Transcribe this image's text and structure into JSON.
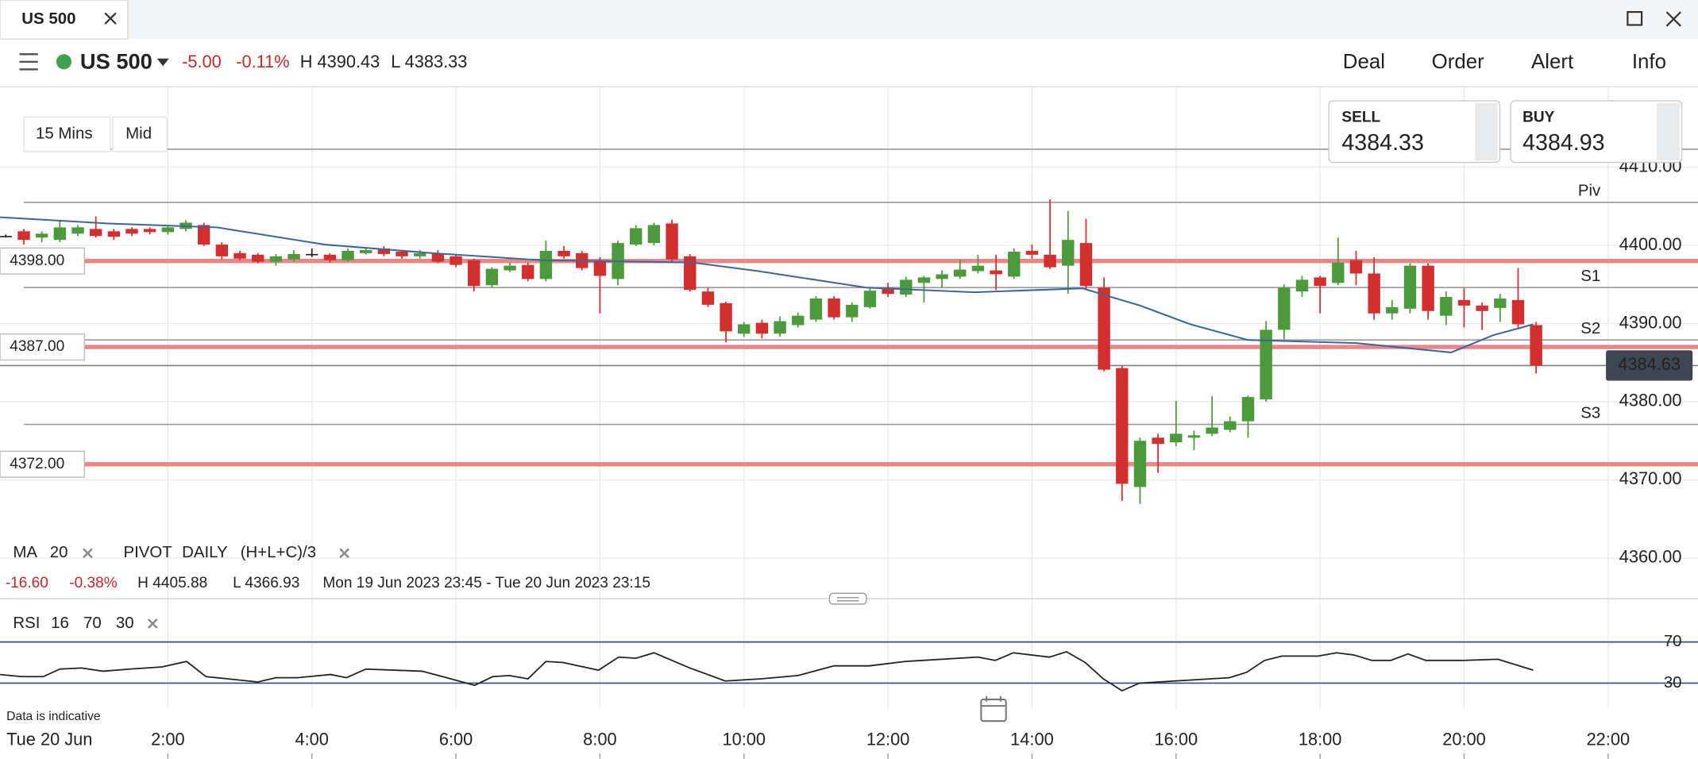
{
  "tab": {
    "title": "US 500"
  },
  "toolbar": {
    "instrument": "US 500",
    "change": "-5.00",
    "change_pct": "-0.11%",
    "high": "H 4390.43",
    "low": "L 4383.33",
    "actions": [
      "Deal",
      "Order",
      "Alert",
      "Info"
    ]
  },
  "settings": {
    "timeframe": "15 Mins",
    "price_type": "Mid"
  },
  "quotes": {
    "sell": {
      "label": "SELL",
      "price": "4384.33"
    },
    "buy": {
      "label": "BUY",
      "price": "4384.93"
    }
  },
  "legend": {
    "ma": {
      "name": "MA",
      "period": "20"
    },
    "pivot": {
      "name": "PIVOT",
      "period": "DAILY",
      "formula": "(H+L+C)/3"
    }
  },
  "summary": {
    "change": "-16.60",
    "change_pct": "-0.38%",
    "high": "H 4405.88",
    "low": "L 4366.93",
    "range": "Mon 19 Jun 2023 23:45 - Tue 20 Jun 2023 23:15"
  },
  "rsi_legend": {
    "name": "RSI",
    "period": "16",
    "upper": "70",
    "lower": "30"
  },
  "note": "Data is indicative",
  "chart_data": [
    {
      "type": "candlestick",
      "up_color": "#4c9a3c",
      "down_color": "#d32f2f",
      "flat_color": "#222222",
      "xlim": [
        -0.331,
        23.248
      ],
      "date_label": "Tue 20 Jun",
      "xticks": [
        {
          "value": 2,
          "label": "2:00"
        },
        {
          "value": 4,
          "label": "4:00"
        },
        {
          "value": 6,
          "label": "6:00"
        },
        {
          "value": 8,
          "label": "8:00"
        },
        {
          "value": 10,
          "label": "10:00"
        },
        {
          "value": 12,
          "label": "12:00"
        },
        {
          "value": 14,
          "label": "14:00"
        },
        {
          "value": 16,
          "label": "16:00"
        },
        {
          "value": 18,
          "label": "18:00"
        },
        {
          "value": 20,
          "label": "20:00"
        },
        {
          "value": 22,
          "label": "22:00"
        }
      ],
      "ylim": [
        4354.8,
        4420.3
      ],
      "yticks": [
        {
          "value": 4360,
          "label": "4360.00"
        },
        {
          "value": 4370,
          "label": "4370.00"
        },
        {
          "value": 4380,
          "label": "4380.00"
        },
        {
          "value": 4390,
          "label": "4390.00"
        },
        {
          "value": 4400,
          "label": "4400.00"
        },
        {
          "value": 4410,
          "label": "4410.00"
        }
      ],
      "grid": true,
      "candles": [
        [
          -0.25,
          4401.2,
          4401.4,
          4401.0,
          4401.2
        ],
        [
          0,
          4401.8,
          4402.1,
          4400.1,
          4400.7
        ],
        [
          0.25,
          4401.0,
          4401.8,
          4400.4,
          4401.5
        ],
        [
          0.5,
          4400.7,
          4403.2,
          4400.4,
          4402.3
        ],
        [
          0.75,
          4401.5,
          4402.6,
          4401.2,
          4402.3
        ],
        [
          1,
          4402.1,
          4403.7,
          4401.0,
          4401.2
        ],
        [
          1.25,
          4401.8,
          4402.1,
          4400.7,
          4401.1
        ],
        [
          1.5,
          4402.1,
          4402.3,
          4401.2,
          4401.5
        ],
        [
          1.75,
          4402.1,
          4402.3,
          4401.4,
          4401.7
        ],
        [
          2,
          4401.7,
          4402.6,
          4401.4,
          4402.3
        ],
        [
          2.25,
          4402.1,
          4403.2,
          4401.8,
          4402.9
        ],
        [
          2.5,
          4402.6,
          4402.9,
          4399.9,
          4400.1
        ],
        [
          2.75,
          4400.1,
          4400.4,
          4398.2,
          4398.6
        ],
        [
          3,
          4399.0,
          4399.3,
          4398.1,
          4398.3
        ],
        [
          3.25,
          4398.8,
          4399.0,
          4397.7,
          4397.9
        ],
        [
          3.5,
          4397.9,
          4398.9,
          4397.4,
          4398.6
        ],
        [
          3.75,
          4398.2,
          4399.4,
          4397.9,
          4398.9
        ],
        [
          4,
          4398.9,
          4399.6,
          4398.5,
          4398.9
        ],
        [
          4.25,
          4398.8,
          4399.0,
          4397.8,
          4398.1
        ],
        [
          4.5,
          4398.1,
          4399.6,
          4397.9,
          4399.3
        ],
        [
          4.75,
          4399.0,
          4399.7,
          4398.8,
          4399.4
        ],
        [
          5,
          4399.6,
          4399.9,
          4398.6,
          4398.9
        ],
        [
          5.25,
          4399.2,
          4399.4,
          4398.3,
          4398.6
        ],
        [
          5.5,
          4398.6,
          4399.4,
          4398.3,
          4399.0
        ],
        [
          5.75,
          4398.9,
          4399.4,
          4397.7,
          4397.9
        ],
        [
          6,
          4398.6,
          4398.9,
          4397.2,
          4397.5
        ],
        [
          6.25,
          4398.1,
          4398.3,
          4394.1,
          4394.8
        ],
        [
          6.5,
          4394.9,
          4397.2,
          4394.6,
          4397.0
        ],
        [
          6.75,
          4396.8,
          4397.8,
          4396.6,
          4397.4
        ],
        [
          7,
          4397.5,
          4397.8,
          4395.4,
          4395.7
        ],
        [
          7.25,
          4395.7,
          4400.6,
          4395.4,
          4399.3
        ],
        [
          7.5,
          4399.3,
          4399.9,
          4398.3,
          4398.6
        ],
        [
          7.75,
          4399.0,
          4399.3,
          4396.8,
          4397.1
        ],
        [
          8,
          4397.9,
          4398.5,
          4391.3,
          4396.1
        ],
        [
          8.25,
          4395.7,
          4400.6,
          4394.9,
          4400.3
        ],
        [
          8.5,
          4400.1,
          4402.6,
          4399.9,
          4402.2
        ],
        [
          8.75,
          4400.3,
          4402.9,
          4400.0,
          4402.6
        ],
        [
          9,
          4402.8,
          4403.3,
          4397.8,
          4398.2
        ],
        [
          9.25,
          4398.6,
          4398.9,
          4394.1,
          4394.3
        ],
        [
          9.5,
          4394.1,
          4394.6,
          4392.1,
          4392.4
        ],
        [
          9.75,
          4392.6,
          4392.8,
          4387.6,
          4389.0
        ],
        [
          10,
          4388.7,
          4390.2,
          4388.3,
          4389.9
        ],
        [
          10.25,
          4390.1,
          4390.5,
          4388.1,
          4388.7
        ],
        [
          10.5,
          4388.7,
          4390.9,
          4388.3,
          4390.3
        ],
        [
          10.75,
          4389.8,
          4391.4,
          4389.5,
          4391.0
        ],
        [
          11,
          4390.5,
          4393.5,
          4390.2,
          4393.2
        ],
        [
          11.25,
          4393.2,
          4393.5,
          4390.5,
          4390.8
        ],
        [
          11.5,
          4390.8,
          4392.7,
          4390.2,
          4392.4
        ],
        [
          11.75,
          4392.1,
          4394.6,
          4391.9,
          4394.2
        ],
        [
          12,
          4394.6,
          4395.2,
          4393.4,
          4393.8
        ],
        [
          12.25,
          4393.7,
          4396.0,
          4393.4,
          4395.6
        ],
        [
          12.5,
          4395.2,
          4396.1,
          4392.7,
          4395.9
        ],
        [
          12.75,
          4395.7,
          4396.8,
          4394.6,
          4396.3
        ],
        [
          13,
          4396.0,
          4398.2,
          4395.7,
          4396.9
        ],
        [
          13.25,
          4396.7,
          4398.8,
          4396.4,
          4397.4
        ],
        [
          13.5,
          4396.8,
          4398.8,
          4394.3,
          4396.3
        ],
        [
          13.75,
          4396.0,
          4399.6,
          4395.7,
          4399.2
        ],
        [
          14,
          4399.3,
          4400.1,
          4398.3,
          4398.8
        ],
        [
          14.25,
          4398.8,
          4405.88,
          4397.0,
          4397.2
        ],
        [
          14.5,
          4397.4,
          4404.4,
          4393.8,
          4400.7
        ],
        [
          14.75,
          4400.3,
          4403.4,
          4394.3,
          4394.8
        ],
        [
          15,
          4394.6,
          4395.9,
          4383.9,
          4384.1
        ],
        [
          15.25,
          4384.3,
          4384.6,
          4367.3,
          4369.5
        ],
        [
          15.5,
          4369.1,
          4375.4,
          4366.93,
          4375.0
        ],
        [
          15.75,
          4375.4,
          4375.9,
          4370.9,
          4374.6
        ],
        [
          16,
          4374.8,
          4380.1,
          4374.3,
          4375.9
        ],
        [
          16.25,
          4375.4,
          4376.3,
          4373.8,
          4375.7
        ],
        [
          16.5,
          4375.9,
          4380.7,
          4375.6,
          4376.7
        ],
        [
          16.75,
          4376.4,
          4378.1,
          4376.1,
          4377.5
        ],
        [
          17,
          4377.5,
          4380.8,
          4375.4,
          4380.6
        ],
        [
          17.25,
          4380.3,
          4390.3,
          4380.0,
          4389.2
        ],
        [
          17.5,
          4389.2,
          4395.0,
          4388.0,
          4394.6
        ],
        [
          17.75,
          4394.1,
          4396.1,
          4393.4,
          4395.6
        ],
        [
          18,
          4395.9,
          4396.1,
          4391.3,
          4394.8
        ],
        [
          18.25,
          4395.2,
          4401.0,
          4394.9,
          4397.8
        ],
        [
          18.5,
          4398.1,
          4399.3,
          4394.9,
          4396.4
        ],
        [
          18.75,
          4396.4,
          4398.5,
          4390.5,
          4391.3
        ],
        [
          19,
          4391.3,
          4393.0,
          4390.5,
          4392.1
        ],
        [
          19.25,
          4391.9,
          4397.7,
          4391.3,
          4397.4
        ],
        [
          19.5,
          4397.4,
          4397.7,
          4390.5,
          4391.6
        ],
        [
          19.75,
          4391.0,
          4394.1,
          4389.8,
          4393.4
        ],
        [
          20,
          4393.0,
          4394.5,
          4389.5,
          4392.3
        ],
        [
          20.25,
          4392.3,
          4392.7,
          4389.2,
          4391.6
        ],
        [
          20.5,
          4392.0,
          4393.8,
          4390.2,
          4393.2
        ],
        [
          20.75,
          4393.0,
          4397.1,
          4389.5,
          4389.9
        ],
        [
          21,
          4389.8,
          4390.2,
          4383.6,
          4384.63
        ]
      ],
      "moving_average": {
        "color": "#3b67a0",
        "x": [
          -0.33,
          1.17,
          2.68,
          4.18,
          5.68,
          7.19,
          8.69,
          9.29,
          10.2,
          11.7,
          13.2,
          14.7,
          15.5,
          16.2,
          17.0,
          18.5,
          19.82,
          20.4,
          20.96
        ],
        "values": [
          4403.6,
          4402.8,
          4402.3,
          4400.1,
          4399.0,
          4398.1,
          4397.9,
          4397.8,
          4396.7,
          4394.6,
          4394.0,
          4394.5,
          4392.3,
          4389.9,
          4387.9,
          4387.5,
          4386.3,
          4388.5,
          4389.9
        ]
      },
      "pivots": [
        {
          "value": 4412.3
        },
        {
          "value": 4405.5,
          "name": "Piv"
        },
        {
          "value": 4394.6,
          "name": "S1"
        },
        {
          "value": 4387.9,
          "name": "S2"
        },
        {
          "value": 4377.1,
          "name": "S3"
        }
      ],
      "alert_levels": [
        {
          "value": 4398,
          "label": "4398.00"
        },
        {
          "value": 4387,
          "label": "4387.00"
        },
        {
          "value": 4372,
          "label": "4372.00"
        }
      ],
      "last_price": {
        "value": 4384.63,
        "label": "4384.63"
      }
    },
    {
      "type": "line",
      "color": "#222222",
      "level_color": "#2f4f8a",
      "xlim": [
        -0.331,
        23.248
      ],
      "ylim": [
        10,
        78.4
      ],
      "yticks": [
        30,
        70
      ],
      "x": [
        -0.33,
        -0.03,
        0.27,
        0.5,
        0.8,
        1.1,
        1.47,
        1.92,
        2.26,
        2.53,
        2.83,
        3.25,
        3.5,
        3.8,
        4.26,
        4.48,
        4.75,
        5.53,
        5.76,
        6.26,
        6.51,
        6.74,
        7.0,
        7.25,
        7.49,
        7.98,
        8.26,
        8.5,
        8.75,
        9.25,
        9.74,
        10.24,
        10.75,
        11.25,
        11.74,
        12.24,
        13.25,
        13.49,
        13.74,
        14.24,
        14.48,
        14.74,
        14.99,
        15.25,
        15.49,
        15.98,
        16.74,
        16.98,
        17.23,
        17.47,
        17.97,
        18.23,
        18.47,
        18.72,
        18.98,
        19.22,
        19.47,
        19.97,
        20.47,
        20.96
      ],
      "values": [
        38.4,
        36.3,
        36.3,
        43.7,
        44.7,
        41.6,
        43.7,
        45.8,
        51.1,
        36.3,
        34.2,
        31.1,
        35.3,
        35.3,
        38.4,
        35.3,
        43.7,
        41.6,
        37.4,
        27.9,
        36.3,
        37.4,
        34.2,
        51.1,
        50.0,
        42.6,
        55.3,
        54.2,
        59.5,
        44.7,
        32.1,
        34.2,
        37.4,
        46.8,
        46.8,
        51.1,
        55.3,
        52.1,
        59.5,
        55.3,
        60.5,
        50.0,
        34.2,
        22.6,
        30.0,
        32.1,
        35.3,
        40.5,
        52.1,
        56.3,
        56.3,
        59.5,
        57.4,
        52.1,
        52.1,
        58.4,
        52.1,
        52.1,
        53.2,
        42.6
      ]
    }
  ]
}
